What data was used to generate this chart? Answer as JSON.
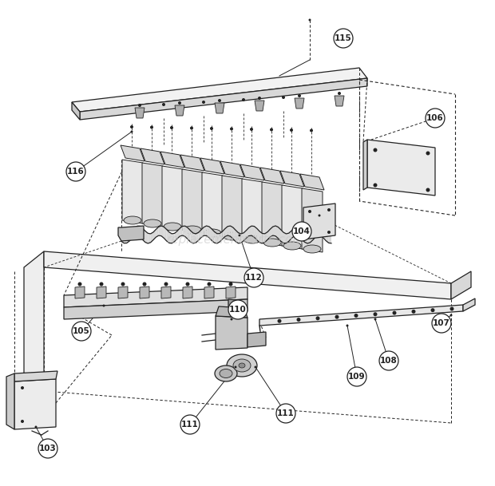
{
  "bg_color": "#ffffff",
  "line_color": "#222222",
  "watermark_text": "replacementparts.com",
  "figsize": [
    6.2,
    6.09
  ],
  "dpi": 100,
  "labels": [
    [
      "115",
      430,
      48
    ],
    [
      "106",
      545,
      148
    ],
    [
      "116",
      95,
      215
    ],
    [
      "104",
      378,
      290
    ],
    [
      "112",
      318,
      348
    ],
    [
      "105",
      102,
      415
    ],
    [
      "110",
      298,
      388
    ],
    [
      "107",
      553,
      405
    ],
    [
      "108",
      487,
      452
    ],
    [
      "109",
      447,
      472
    ],
    [
      "111",
      358,
      518
    ],
    [
      "111",
      238,
      532
    ],
    [
      "103",
      60,
      562
    ]
  ]
}
